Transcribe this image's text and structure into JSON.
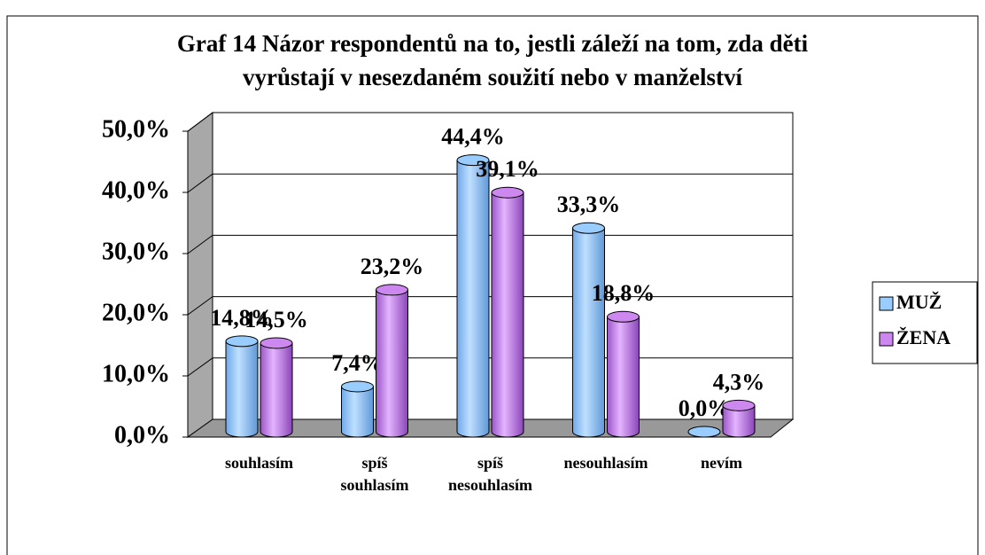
{
  "chart_data": {
    "type": "bar3d",
    "title": [
      "Graf 14 Názor respondentů na to, jestli záleží na tom, zda děti",
      "vyrůstají v nesezdaném soužití nebo v manželství"
    ],
    "categories": [
      "souhlasím",
      "spíš souhlasím",
      "spíš nesouhlasím",
      "nesouhlasím",
      "nevím"
    ],
    "series": [
      {
        "name": "MUŽ",
        "color": "#99ccff",
        "values": [
          14.8,
          7.4,
          44.4,
          33.3,
          0.0
        ],
        "value_labels": [
          "14,8%",
          "7,4%",
          "44,4%",
          "33,3%",
          "0,0%"
        ]
      },
      {
        "name": "ŽENA",
        "color": "#cc88ee",
        "values": [
          14.5,
          23.2,
          39.1,
          18.8,
          4.3
        ],
        "value_labels": [
          "14,5%",
          "23,2%",
          "39,1%",
          "18,8%",
          "4,3%"
        ]
      }
    ],
    "ylim": [
      0,
      50
    ],
    "yticks": [
      {
        "value": 0,
        "label": "0,0%"
      },
      {
        "value": 10,
        "label": "10,0%"
      },
      {
        "value": 20,
        "label": "20,0%"
      },
      {
        "value": 30,
        "label": "30,0%"
      },
      {
        "value": 40,
        "label": "40,0%"
      },
      {
        "value": 50,
        "label": "50,0%"
      }
    ],
    "grid": true,
    "legend": "right"
  }
}
